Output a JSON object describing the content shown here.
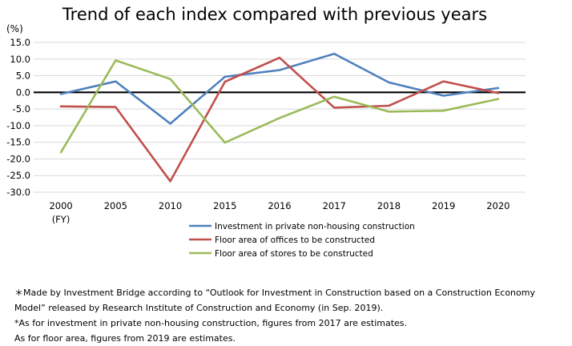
{
  "chart_data": {
    "type": "line",
    "title": "Trend of each index compared with previous years",
    "y_unit": "(%)",
    "categories": [
      "2000",
      "2005",
      "2010",
      "2015",
      "2016",
      "2017",
      "2018",
      "2019",
      "2020"
    ],
    "x_sublabel": "(FY)",
    "ylim": [
      -30,
      15
    ],
    "y_ticks": [
      "15.0",
      "10.0",
      "5.0",
      "0.0",
      "-5.0",
      "-10.0",
      "-15.0",
      "-20.0",
      "-25.0",
      "-30.0"
    ],
    "grid": true,
    "legend_position": "bottom",
    "series": [
      {
        "name": "Investment in private non-housing construction",
        "color": "#4f81bd",
        "values": [
          -0.5,
          3.3,
          -9.4,
          4.7,
          6.7,
          11.6,
          3.0,
          -1.0,
          1.3
        ]
      },
      {
        "name": "Floor area of offices to be constructed",
        "color": "#c0504d",
        "values": [
          -4.2,
          -4.4,
          -26.7,
          3.2,
          10.4,
          -4.6,
          -4.0,
          3.3,
          -0.2
        ]
      },
      {
        "name": "Floor area of stores to be constructed",
        "color": "#9bbb59",
        "values": [
          -18.0,
          9.6,
          4.0,
          -15.1,
          -7.7,
          -1.3,
          -5.8,
          -5.5,
          -2.0
        ]
      }
    ]
  },
  "notes": [
    "＊Made by Investment Bridge according to “Outlook for Investment in Construction based on a Construction Economy",
    "Model” released by Research Institute of Construction and Economy (in Sep. 2019).",
    "*As for investment in private non-housing construction, figures from 2017 are estimates.",
    "As for floor area, figures from 2019 are estimates."
  ]
}
